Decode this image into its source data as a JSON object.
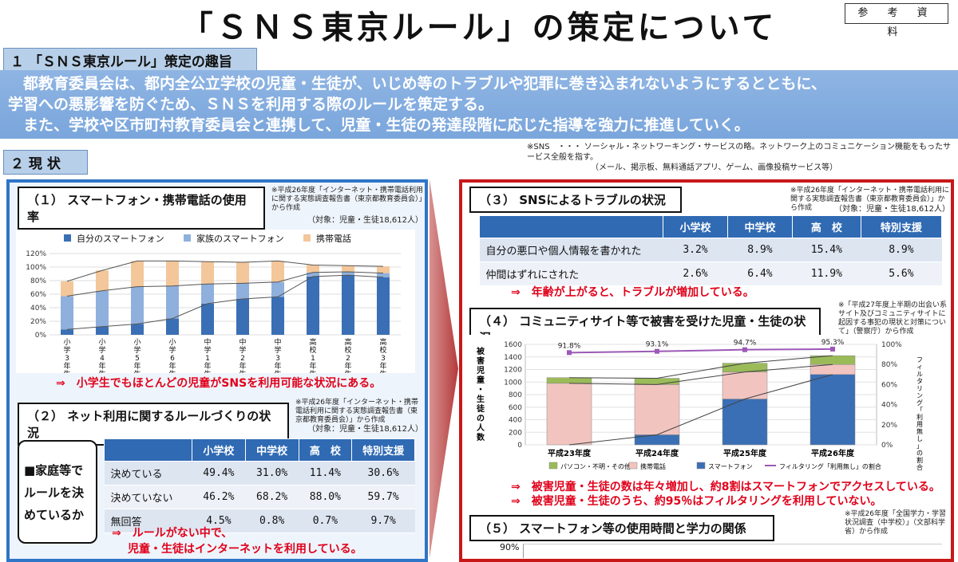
{
  "page": {
    "title": "「ＳＮＳ東京ルール」の策定について",
    "reference_label": "参 考 資 料"
  },
  "section1": {
    "heading": "１ 「ＳＮＳ東京ルール」策定の趣旨",
    "body_line1": "　都教育委員会は、都内全公立学校の児童・生徒が、いじめ等のトラブルや犯罪に巻き込まれないようにするとともに、",
    "body_line2": "学習への悪影響を防ぐため、ＳＮＳを利用する際のルールを策定する。",
    "body_line3": "　また、学校や区市町村教育委員会と連携して、児童・生徒の発達段階に応じた指導を強力に推進していく。",
    "footnote_line1": "※SNS　・・・ ソーシャル・ネットワーキング・サービスの略。ネットワーク上のコミュニケーション機能をもったサービス全般を指す。",
    "footnote_line2": "（メール、掲示板、無料通話アプリ、ゲーム、画像投稿サービス等）"
  },
  "section2": {
    "heading": "２ 現 状"
  },
  "panel1": {
    "title": "（１） スマートフォン・携帯電話の使用率",
    "source": "※平成26年度「インターネット・携帯電話利用に関する実態調査報告書（東京都教育委員会）」から作成",
    "target": "（対象：児童・生徒18,612人）",
    "conclusion": "⇒　小学生でもほとんどの児童がSNSを利用可能な状況にある。"
  },
  "panel2": {
    "title": "（２） ネット利用に関するルールづくりの状況",
    "source": "※平成26年度「インターネット・携帯電話利用に関する実態調査報告書（東京都教育委員会）」から作成",
    "target": "（対象：児童・生徒18,612人）",
    "side_label_1": "■家庭等で",
    "side_label_2": "ルールを決",
    "side_label_3": "めているか",
    "table": {
      "headers": [
        "",
        "小学校",
        "中学校",
        "高　校",
        "特別支援"
      ],
      "rows": [
        [
          "決めている",
          "49.4%",
          "31.0%",
          "11.4%",
          "30.6%"
        ],
        [
          "決めていない",
          "46.2%",
          "68.2%",
          "88.0%",
          "59.7%"
        ],
        [
          "無回答",
          "4.5%",
          "0.8%",
          "0.7%",
          "9.7%"
        ]
      ]
    },
    "conclusion_1": "⇒　ルールがない中で、",
    "conclusion_2": "児童・生徒はインターネットを利用している。"
  },
  "panel3": {
    "title": "（３） SNSによるトラブルの状況",
    "source": "※平成26年度「インターネット・携帯電話利用に関する実態調査報告書（東京都教育委員会）」から作成",
    "target": "（対象：児童・生徒18,612人）",
    "table": {
      "headers": [
        "",
        "小学校",
        "中学校",
        "高　校",
        "特別支援"
      ],
      "rows": [
        [
          "自分の悪口や個人情報を書かれた",
          "3.2%",
          "8.9%",
          "15.4%",
          "8.9%"
        ],
        [
          "仲間はずれにされた",
          "2.6%",
          "6.4%",
          "11.9%",
          "5.6%"
        ]
      ]
    },
    "conclusion": "⇒　年齢が上がると、トラブルが増加している。"
  },
  "panel4": {
    "title": "（４） コミュニティサイト等で被害を受けた児童・生徒の状況",
    "source": "※「平成27年度上半期の出会い系サイト及びコミュニティサイトに起因する事犯の現状と対策について」（警察庁）から作成",
    "conclusion_1": "⇒　被害児童・生徒の数は年々増加し、約8割はスマートフォンでアクセスしている。",
    "conclusion_2": "⇒　被害児童・生徒のうち、約95％はフィルタリングを利用していない。"
  },
  "panel5": {
    "title": "（５） スマートフォン等の使用時間と学力の関係",
    "source": "※平成26年度「全国学力・学習状況調査（中学校）」（文部科学省）から作成",
    "axis_top": "90%"
  },
  "chart_data": [
    {
      "type": "bar",
      "stacked": true,
      "title": "",
      "categories": [
        "小学3年生",
        "小学4年生",
        "小学5年生",
        "小学6年生",
        "中学1年生",
        "中学2年生",
        "中学3年生",
        "高校1年生",
        "高校2年生",
        "高校3年生"
      ],
      "series": [
        {
          "name": "自分のスマートフォン",
          "color": "#3a6fb5",
          "values": [
            8,
            12,
            16,
            24,
            46,
            53,
            56,
            86,
            88,
            85
          ]
        },
        {
          "name": "家族のスマートフォン",
          "color": "#8fb0dc",
          "values": [
            49,
            53,
            55,
            48,
            29,
            23,
            22,
            6,
            5,
            6
          ]
        },
        {
          "name": "携帯電話",
          "color": "#f3c79a",
          "values": [
            22,
            30,
            38,
            37,
            33,
            31,
            31,
            11,
            9,
            10
          ]
        }
      ],
      "ylim": [
        0,
        120
      ],
      "yticks": [
        "0%",
        "20%",
        "40%",
        "60%",
        "80%",
        "100%",
        "120%"
      ],
      "legend_position": "top"
    },
    {
      "type": "bar",
      "stacked": true,
      "title": "",
      "categories": [
        "平成23年度",
        "平成24年度",
        "平成25年度",
        "平成26年度"
      ],
      "series": [
        {
          "name": "スマートフォン",
          "color": "#3a6fb5",
          "values": [
            0,
            160,
            730,
            1120
          ]
        },
        {
          "name": "携帯電話",
          "color": "#f2c4c0",
          "values": [
            980,
            800,
            430,
            160
          ]
        },
        {
          "name": "パソコン・不明・その他",
          "color": "#9bbb59",
          "values": [
            90,
            100,
            140,
            140
          ]
        }
      ],
      "line": {
        "name": "フィルタリング「利用無し」の割合",
        "color": "#9b59b6",
        "values": [
          91.8,
          93.1,
          94.7,
          95.3
        ],
        "labels": [
          "91.8%",
          "93.1%",
          "94.7%",
          "95.3%"
        ]
      },
      "ylabel": "被害児童・生徒の人数",
      "y2label": "フィルタリング「利用無し」の割合",
      "ylim": [
        0,
        1600
      ],
      "y2lim": [
        0,
        100
      ],
      "yticks": [
        "0",
        "200",
        "400",
        "600",
        "800",
        "1000",
        "1200",
        "1400",
        "1600"
      ],
      "y2ticks": [
        "0%",
        "20%",
        "40%",
        "60%",
        "80%",
        "100%"
      ],
      "legend_position": "bottom"
    }
  ]
}
